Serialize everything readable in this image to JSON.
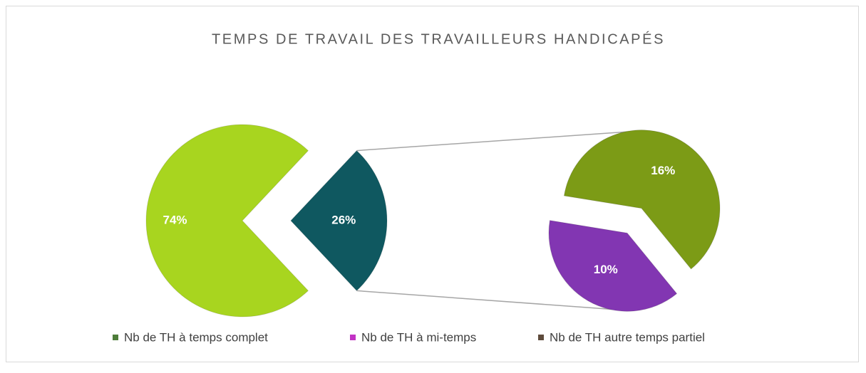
{
  "chart_data": {
    "type": "pie",
    "title": "TEMPS DE TRAVAIL DES TRAVAILLEURS HANDICAPÉS",
    "values": [
      74,
      26
    ],
    "value_labels": [
      "74%",
      "26%"
    ],
    "colors": [
      "#a8d51f",
      "#0f5860"
    ],
    "secondary": {
      "values": [
        16,
        10
      ],
      "value_labels": [
        "16%",
        "10%"
      ],
      "colors": [
        "#7c9b16",
        "#8236b2"
      ]
    },
    "legend": [
      {
        "name": "Nb de TH à temps complet",
        "color": "#4e7d3a"
      },
      {
        "name": "Nb de TH à mi-temps",
        "color": "#c233c4"
      },
      {
        "name": "Nb de TH autre temps partiel",
        "color": "#5e4b3c"
      }
    ]
  }
}
